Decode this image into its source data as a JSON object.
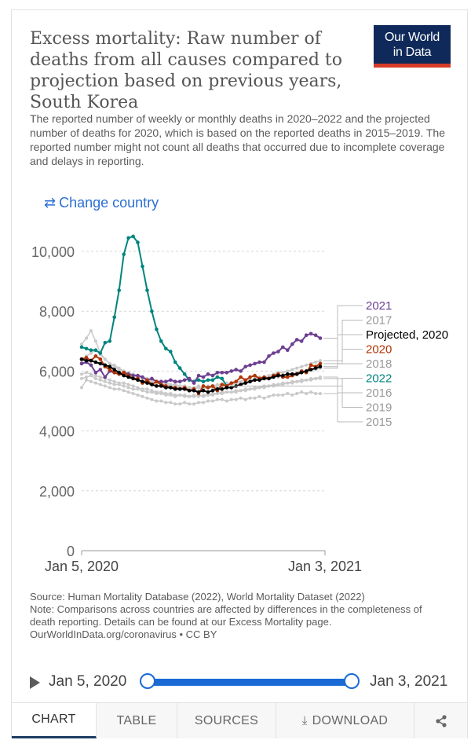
{
  "header": {
    "title": "Excess mortality: Raw number of deaths from all causes compared to projection based on previous years, South Korea",
    "subtitle": "The reported number of weekly or monthly deaths in 2020–2022 and the projected number of deaths for 2020, which is based on the reported deaths in 2015–2019. The reported number might not count all deaths that occurred due to incomplete coverage and delays in reporting.",
    "logo_line1": "Our World",
    "logo_line2": "in Data",
    "change_country": "Change country",
    "change_icon": "⇄"
  },
  "chart_data": {
    "type": "line",
    "title": "Excess mortality: Raw number of deaths from all causes compared to projection based on previous years, South Korea",
    "xlabel": "",
    "ylabel": "",
    "ylim": [
      0,
      11000
    ],
    "yticks": [
      0,
      2000,
      4000,
      6000,
      8000,
      10000
    ],
    "ytick_labels": [
      "0",
      "2,000",
      "4,000",
      "6,000",
      "8,000",
      "10,000"
    ],
    "x_range_weeks": [
      1,
      53
    ],
    "xtick_labels": [
      {
        "label": "Jan 5, 2020",
        "week": 1
      },
      {
        "label": "Jan 3, 2021",
        "week": 53
      }
    ],
    "x": "week index (1 = Jan 5, 2020 … 53 = Jan 3, 2021)",
    "series": [
      {
        "name": "2015",
        "color": "#c9c9c9",
        "highlight": false,
        "values": [
          5450,
          5700,
          5650,
          5600,
          5550,
          5500,
          5450,
          5400,
          5400,
          5350,
          5300,
          5250,
          5200,
          5150,
          5100,
          5050,
          5000,
          5000,
          4950,
          4950,
          4900,
          4900,
          4950,
          4900,
          4900,
          4950,
          4950,
          5000,
          5000,
          5050,
          5050,
          5000,
          5050,
          5050,
          5100,
          5050,
          5100,
          5100,
          5150,
          5100,
          5150,
          5200,
          5200,
          5200,
          5250,
          5200,
          5250,
          5300,
          5250,
          5300,
          5250,
          5250
        ]
      },
      {
        "name": "2016",
        "color": "#c9c9c9",
        "highlight": false,
        "values": [
          5750,
          5800,
          5850,
          5750,
          5700,
          5650,
          5600,
          5550,
          5550,
          5500,
          5450,
          5400,
          5400,
          5350,
          5300,
          5300,
          5250,
          5250,
          5200,
          5200,
          5150,
          5200,
          5150,
          5150,
          5200,
          5150,
          5200,
          5200,
          5250,
          5250,
          5300,
          5300,
          5300,
          5350,
          5350,
          5400,
          5400,
          5450,
          5450,
          5500,
          5500,
          5550,
          5550,
          5600,
          5600,
          5650,
          5650,
          5700,
          5700,
          5750,
          5750,
          5800
        ]
      },
      {
        "name": "2017",
        "color": "#c9c9c9",
        "highlight": false,
        "values": [
          6900,
          7100,
          7350,
          7000,
          6600,
          6400,
          6250,
          6200,
          6100,
          6000,
          5950,
          5900,
          5850,
          5800,
          5750,
          5700,
          5650,
          5600,
          5600,
          5550,
          5550,
          5500,
          5500,
          5450,
          5450,
          5500,
          5450,
          5500,
          5500,
          5550,
          5550,
          5600,
          5600,
          5650,
          5650,
          5700,
          5700,
          5750,
          5800,
          5800,
          5850,
          5900,
          5950,
          5950,
          6000,
          6050,
          6100,
          6150,
          6200,
          6250,
          6300,
          6350
        ]
      },
      {
        "name": "2018",
        "color": "#c9c9c9",
        "highlight": false,
        "values": [
          6300,
          6500,
          6600,
          6700,
          6550,
          6400,
          6250,
          6150,
          6050,
          5950,
          5900,
          5850,
          5800,
          5750,
          5700,
          5650,
          5600,
          5550,
          5550,
          5500,
          5500,
          5450,
          5450,
          5450,
          5400,
          5450,
          5400,
          5450,
          5450,
          5500,
          5500,
          5550,
          5550,
          5600,
          5600,
          5650,
          5650,
          5700,
          5700,
          5750,
          5750,
          5800,
          5800,
          5850,
          5900,
          5900,
          5950,
          6000,
          6000,
          6050,
          6050,
          6100
        ]
      },
      {
        "name": "2019",
        "color": "#c9c9c9",
        "highlight": false,
        "values": [
          5900,
          5950,
          5900,
          5850,
          5800,
          5750,
          5700,
          5650,
          5600,
          5600,
          5550,
          5500,
          5450,
          5400,
          5400,
          5350,
          5300,
          5300,
          5250,
          5250,
          5200,
          5200,
          5200,
          5150,
          5150,
          5200,
          5150,
          5200,
          5200,
          5250,
          5250,
          5300,
          5300,
          5300,
          5350,
          5350,
          5400,
          5400,
          5450,
          5450,
          5500,
          5500,
          5550,
          5550,
          5600,
          5600,
          5650,
          5650,
          5700,
          5700,
          5750,
          5750
        ]
      },
      {
        "name": "2022",
        "color": "#00847e",
        "highlight": true,
        "values": [
          6800,
          6750,
          6700,
          6700,
          6600,
          6950,
          7000,
          7800,
          8700,
          9900,
          10450,
          10500,
          10300,
          9500,
          8700,
          8000,
          7400,
          7000,
          6750,
          6650,
          6300,
          6100,
          5900,
          5700,
          5650,
          5700,
          5650,
          5700,
          5700,
          5800,
          5750,
          5500
        ]
      },
      {
        "name": "2021",
        "color": "#6d3e91",
        "highlight": true,
        "values": [
          6250,
          6300,
          6200,
          5950,
          6050,
          5800,
          6000,
          5950,
          5900,
          5950,
          5900,
          5850,
          5850,
          5800,
          5700,
          5750,
          5650,
          5650,
          5650,
          5700,
          5650,
          5650,
          5700,
          5750,
          5600,
          5850,
          5800,
          5900,
          5850,
          5950,
          5950,
          5950,
          6000,
          6050,
          6000,
          6150,
          6200,
          6250,
          6300,
          6300,
          6500,
          6600,
          6650,
          6800,
          6700,
          6900,
          7050,
          7000,
          7200,
          7250,
          7200,
          7100
        ]
      },
      {
        "name": "2020",
        "color": "#b13507",
        "highlight": true,
        "values": [
          6400,
          6450,
          6350,
          6500,
          6400,
          6150,
          6050,
          5950,
          5900,
          5950,
          5850,
          5750,
          5750,
          5600,
          5700,
          5550,
          5650,
          5550,
          5500,
          5450,
          5450,
          5400,
          5450,
          5350,
          5400,
          5250,
          5500,
          5450,
          5500,
          5350,
          5550,
          5500,
          5600,
          5650,
          5800,
          5700,
          5800,
          5850,
          5750,
          5800,
          5750,
          5850,
          5900,
          5800,
          5800,
          5850,
          5900,
          6000,
          5950,
          6200,
          6150,
          6250
        ]
      },
      {
        "name": "Projected, 2020",
        "color": "#000000",
        "highlight": true,
        "values": [
          6400,
          6350,
          6350,
          6300,
          6250,
          6200,
          6150,
          6050,
          5950,
          5850,
          5800,
          5750,
          5700,
          5650,
          5600,
          5550,
          5500,
          5500,
          5450,
          5450,
          5400,
          5400,
          5400,
          5350,
          5350,
          5300,
          5350,
          5300,
          5350,
          5400,
          5400,
          5450,
          5450,
          5500,
          5550,
          5600,
          5650,
          5700,
          5700,
          5750,
          5750,
          5800,
          5850,
          5850,
          5900,
          5900,
          5900,
          5950,
          6000,
          6050,
          6100,
          6150
        ]
      }
    ],
    "legend": {
      "placement": "right",
      "order": [
        "2021",
        "2017",
        "Projected, 2020",
        "2020",
        "2018",
        "2022",
        "2016",
        "2019",
        "2015"
      ]
    }
  },
  "footer": {
    "source": "Source: Human Mortality Database (2022), World Mortality Dataset (2022)",
    "note": "Note: Comparisons across countries are affected by differences in the completeness of death reporting. Details can be found at our Excess Mortality page.",
    "license": "OurWorldInData.org/coronavirus • CC BY"
  },
  "timeline": {
    "start": "Jan 5, 2020",
    "end": "Jan 3, 2021"
  },
  "tabs": {
    "chart": "CHART",
    "table": "TABLE",
    "sources": "SOURCES",
    "download": "DOWNLOAD",
    "download_icon": "⤓",
    "share_icon": "share-icon"
  },
  "colors": {
    "accent": "#1a6ad6",
    "logo_bg": "#0f2a5a",
    "logo_stripe": "#d63b27"
  }
}
